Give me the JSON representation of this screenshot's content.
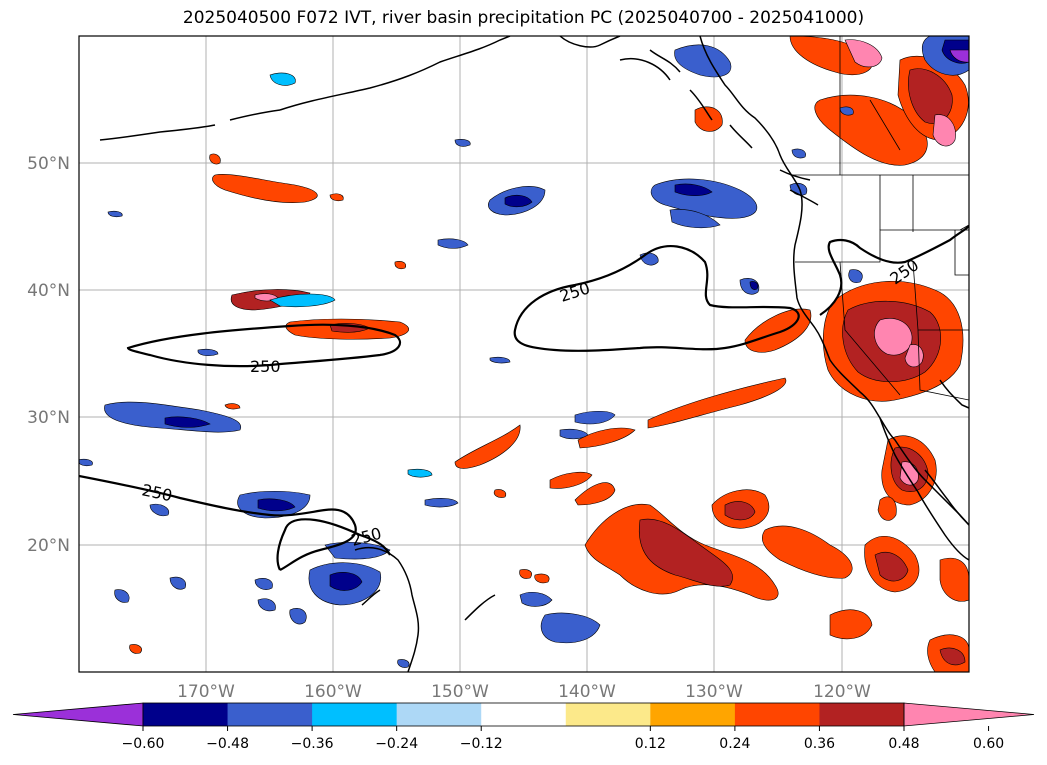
{
  "title": "2025040500 F072 IVT, river basin precipitation PC (2025040700 - 2025041000)",
  "map": {
    "projection": "equirectangular",
    "lon_range": [
      -180,
      -110
    ],
    "lat_range": [
      10,
      60
    ],
    "lat_ticks": [
      {
        "value": 20,
        "label": "20°N"
      },
      {
        "value": 30,
        "label": "30°N"
      },
      {
        "value": 40,
        "label": "40°N"
      },
      {
        "value": 50,
        "label": "50°N"
      }
    ],
    "lon_ticks": [
      {
        "value": -170,
        "label": "170°W"
      },
      {
        "value": -160,
        "label": "160°W"
      },
      {
        "value": -150,
        "label": "150°W"
      },
      {
        "value": -140,
        "label": "140°W"
      },
      {
        "value": -130,
        "label": "130°W"
      },
      {
        "value": -120,
        "label": "120°W"
      }
    ],
    "grid": true,
    "ivt_contour_level": "250",
    "ivt_contour_labels": [
      "250",
      "250",
      "250",
      "250",
      "250"
    ]
  },
  "colorbar": {
    "ticks": [
      "−0.60",
      "−0.48",
      "−0.36",
      "−0.24",
      "−0.12",
      "0.12",
      "0.24",
      "0.36",
      "0.48",
      "0.60"
    ],
    "colors": [
      "#9b30d9",
      "#00008b",
      "#3a5fcd",
      "#00bfff",
      "#add8f6",
      "#ffffff",
      "#fce98a",
      "#ffa500",
      "#ff4500",
      "#b22222",
      "#ff85b0"
    ],
    "extend": "both"
  },
  "colors": {
    "coast": "#000000",
    "grid": "#b0b0b0",
    "axis_label": "#777777"
  }
}
